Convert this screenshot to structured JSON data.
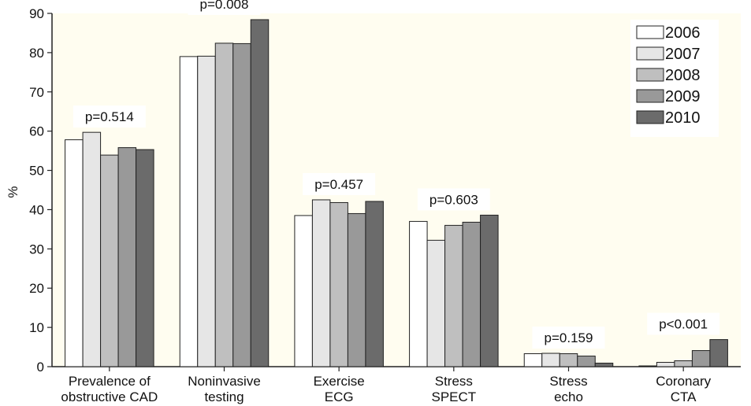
{
  "chart_data": {
    "type": "bar",
    "title": "",
    "xlabel": "",
    "ylabel": "%",
    "ylim": [
      0,
      90
    ],
    "yticks": [
      0,
      10,
      20,
      30,
      40,
      50,
      60,
      70,
      80,
      90
    ],
    "grid": false,
    "legend_position": "top-right",
    "categories": [
      [
        "Prevalence of",
        "obstructive CAD"
      ],
      [
        "Noninvasive",
        "testing"
      ],
      [
        "Exercise",
        "ECG"
      ],
      [
        "Stress",
        "SPECT"
      ],
      [
        "Stress",
        "echo"
      ],
      [
        "Coronary",
        "CTA"
      ]
    ],
    "series": [
      {
        "name": "2006",
        "color": "#ffffff",
        "values": [
          57.8,
          79.0,
          38.5,
          37.0,
          3.3,
          0.2
        ]
      },
      {
        "name": "2007",
        "color": "#e6e6e6",
        "values": [
          59.7,
          79.1,
          42.5,
          32.2,
          3.4,
          1.1
        ]
      },
      {
        "name": "2008",
        "color": "#bfbfbf",
        "values": [
          53.9,
          82.4,
          41.8,
          36.0,
          3.3,
          1.5
        ]
      },
      {
        "name": "2009",
        "color": "#999999",
        "values": [
          55.8,
          82.3,
          39.0,
          36.8,
          2.7,
          4.1
        ]
      },
      {
        "name": "2010",
        "color": "#6b6b6b",
        "values": [
          55.3,
          88.4,
          42.1,
          38.6,
          0.9,
          6.9
        ]
      }
    ],
    "annotations": [
      "p=0.514",
      "p=0.008",
      "p=0.457",
      "p=0.603",
      "p=0.159",
      "p<0.001"
    ],
    "plot_background": "#fffdf0",
    "bar_stroke": "#222222"
  }
}
